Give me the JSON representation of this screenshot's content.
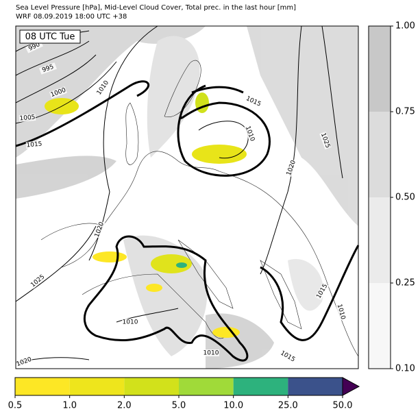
{
  "header": {
    "line1": "Sea Level Pressure [hPa], Mid-Level Cloud Cover, Total prec. in the last hour [mm]",
    "line2": "WRF 08.09.2019 18:00 UTC +38"
  },
  "map": {
    "time_label": "08 UTC Tue",
    "contour_labels": [
      "990",
      "995",
      "1000",
      "1005",
      "1015",
      "1010",
      "1015",
      "1010",
      "1020",
      "1025",
      "1020",
      "1025",
      "1010",
      "1010",
      "1015",
      "1010",
      "1020",
      "1015"
    ]
  },
  "cloud_colorbar": {
    "ticks": [
      "0.10",
      "0.25",
      "0.50",
      "0.75",
      "1.00"
    ],
    "colors": [
      "#f7f7f7",
      "#ebebeb",
      "#dcdcdc",
      "#c8c8c8"
    ]
  },
  "precip_colorbar": {
    "ticks": [
      "0.5",
      "1.0",
      "2.0",
      "5.0",
      "10.0",
      "25.0",
      "50.0"
    ],
    "colors": [
      "#fde725",
      "#eee51c",
      "#d2e11b",
      "#a0da39",
      "#2db27d",
      "#3b528b"
    ],
    "extend_color": "#440154"
  }
}
